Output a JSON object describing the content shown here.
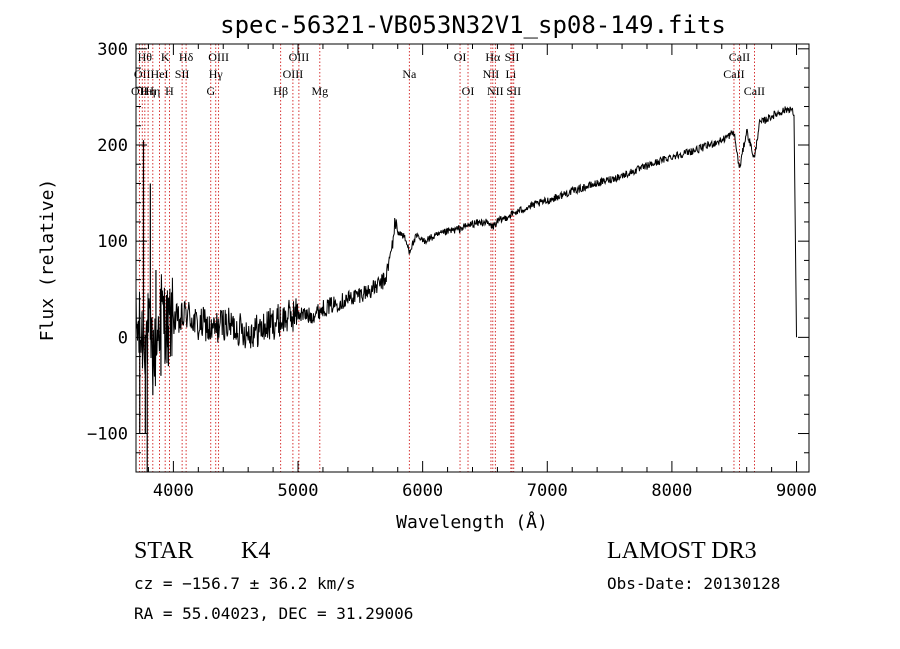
{
  "chart_data": {
    "type": "line",
    "title": "spec-56321-VB053N32V1_sp08-149.fits",
    "xlabel": "Wavelength (Å)",
    "ylabel": "Flux (relative)",
    "xlim": [
      3700,
      9100
    ],
    "ylim": [
      -140,
      305
    ],
    "x_ticks": [
      4000,
      5000,
      6000,
      7000,
      8000,
      9000
    ],
    "y_ticks": [
      -100,
      0,
      100,
      200,
      300
    ],
    "y_tick_labels": [
      "−100",
      "0",
      "100",
      "200",
      "300"
    ],
    "series": [
      {
        "name": "flux",
        "x": [
          3700,
          3750,
          3800,
          3850,
          3900,
          3950,
          4000,
          4050,
          4100,
          4150,
          4200,
          4250,
          4300,
          4350,
          4400,
          4500,
          4600,
          4700,
          4800,
          4900,
          5000,
          5100,
          5200,
          5300,
          5400,
          5500,
          5600,
          5700,
          5750,
          5780,
          5800,
          5850,
          5893,
          5950,
          6000,
          6100,
          6200,
          6300,
          6400,
          6500,
          6563,
          6600,
          6700,
          6800,
          6900,
          7000,
          7200,
          7400,
          7600,
          7800,
          8000,
          8200,
          8400,
          8498,
          8542,
          8600,
          8662,
          8700,
          8800,
          8900,
          8950,
          8980,
          9000
        ],
        "y": [
          10,
          0,
          5,
          -20,
          30,
          10,
          20,
          15,
          25,
          20,
          10,
          15,
          5,
          10,
          15,
          10,
          5,
          8,
          15,
          20,
          25,
          22,
          30,
          35,
          40,
          45,
          50,
          60,
          90,
          120,
          110,
          105,
          90,
          105,
          100,
          105,
          110,
          113,
          118,
          120,
          115,
          120,
          127,
          133,
          138,
          142,
          152,
          160,
          168,
          178,
          188,
          195,
          205,
          213,
          175,
          215,
          185,
          222,
          230,
          236,
          238,
          232,
          0
        ],
        "spikes": [
          {
            "x": 3730,
            "y": -100
          },
          {
            "x": 3760,
            "y": 205
          },
          {
            "x": 3775,
            "y": -100
          },
          {
            "x": 3790,
            "y": -140
          },
          {
            "x": 3815,
            "y": 160
          },
          {
            "x": 3835,
            "y": -60
          },
          {
            "x": 3860,
            "y": 70
          },
          {
            "x": 3900,
            "y": -40
          },
          {
            "x": 3960,
            "y": -30
          }
        ]
      }
    ],
    "line_markers": [
      {
        "wavelength": 3727,
        "label": "OII",
        "row": 2
      },
      {
        "wavelength": 3750,
        "label": "OII",
        "row": 1
      },
      {
        "wavelength": 3771,
        "label": "Hθ",
        "row": 0
      },
      {
        "wavelength": 3797,
        "label": "Hη",
        "row": 2
      },
      {
        "wavelength": 3835,
        "label": "Hη",
        "row": 2
      },
      {
        "wavelength": 3889,
        "label": "HeI",
        "row": 1
      },
      {
        "wavelength": 3934,
        "label": "K",
        "row": 0
      },
      {
        "wavelength": 3968,
        "label": "H",
        "row": 2
      },
      {
        "wavelength": 4070,
        "label": "SII",
        "row": 1
      },
      {
        "wavelength": 4102,
        "label": "Hδ",
        "row": 0
      },
      {
        "wavelength": 4300,
        "label": "G",
        "row": 2
      },
      {
        "wavelength": 4340,
        "label": "Hγ",
        "row": 1
      },
      {
        "wavelength": 4363,
        "label": "OIII",
        "row": 0
      },
      {
        "wavelength": 4861,
        "label": "Hβ",
        "row": 2
      },
      {
        "wavelength": 4959,
        "label": "OIII",
        "row": 1
      },
      {
        "wavelength": 5007,
        "label": "OIII",
        "row": 0
      },
      {
        "wavelength": 5175,
        "label": "Mg",
        "row": 2
      },
      {
        "wavelength": 5893,
        "label": "Na",
        "row": 1
      },
      {
        "wavelength": 6300,
        "label": "OI",
        "row": 0
      },
      {
        "wavelength": 6364,
        "label": "OI",
        "row": 2
      },
      {
        "wavelength": 6548,
        "label": "NII",
        "row": 1
      },
      {
        "wavelength": 6563,
        "label": "Hα",
        "row": 0
      },
      {
        "wavelength": 6583,
        "label": "NII",
        "row": 2
      },
      {
        "wavelength": 6708,
        "label": "Li",
        "row": 1
      },
      {
        "wavelength": 6717,
        "label": "SII",
        "row": 0
      },
      {
        "wavelength": 6731,
        "label": "SII",
        "row": 2
      },
      {
        "wavelength": 8498,
        "label": "CaII",
        "row": 1
      },
      {
        "wavelength": 8542,
        "label": "CaII",
        "row": 0
      },
      {
        "wavelength": 8662,
        "label": "CaII",
        "row": 2
      }
    ],
    "colors": {
      "spectrum": "#000000",
      "markers": "#cc0000",
      "axes": "#000000"
    }
  },
  "info": {
    "object_class": "STAR",
    "subclass": "K4",
    "survey": "LAMOST DR3",
    "cz": "cz = −156.7 ± 36.2 km/s",
    "obs_date": "Obs-Date: 20130128",
    "coords": "RA =  55.04023, DEC =  31.29006"
  }
}
